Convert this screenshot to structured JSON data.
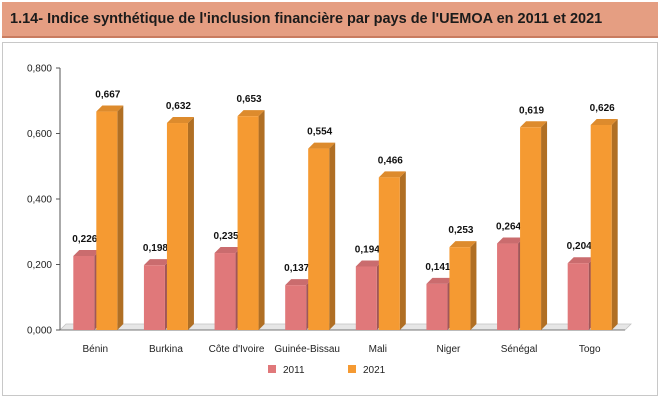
{
  "header": {
    "title": "1.14- Indice synthétique de l'inclusion financière par pays de l'UEMOA en 2011 et 2021"
  },
  "colors": {
    "title_bg": "#e59e82",
    "series_2011": "#e0787a",
    "series_2021": "#f59a32"
  },
  "chart_data": {
    "type": "bar",
    "title": "1.14- Indice synthétique de l'inclusion financière par pays de l'UEMOA en 2011 et 2021",
    "categories": [
      "Bénin",
      "Burkina",
      "Côte d'Ivoire",
      "Guinée-Bissau",
      "Mali",
      "Niger",
      "Sénégal",
      "Togo"
    ],
    "series": [
      {
        "name": "2011",
        "values": [
          0.226,
          0.198,
          0.235,
          0.137,
          0.194,
          0.141,
          0.264,
          0.204
        ],
        "labels": [
          "0,226",
          "0,198",
          "0,235",
          "0,137",
          "0,194",
          "0,141",
          "0,264",
          "0,204"
        ]
      },
      {
        "name": "2021",
        "values": [
          0.667,
          0.632,
          0.653,
          0.554,
          0.466,
          0.253,
          0.619,
          0.626
        ],
        "labels": [
          "0,667",
          "0,632",
          "0,653",
          "0,554",
          "0,466",
          "0,253",
          "0,619",
          "0,626"
        ]
      }
    ],
    "ylim": [
      0,
      0.8
    ],
    "yticks": [
      0,
      0.2,
      0.4,
      0.6,
      0.8
    ],
    "ytick_labels": [
      "0,000",
      "0,200",
      "0,400",
      "0,600",
      "0,800"
    ],
    "grid": false,
    "legend_position": "bottom",
    "style": "3d-bar"
  }
}
